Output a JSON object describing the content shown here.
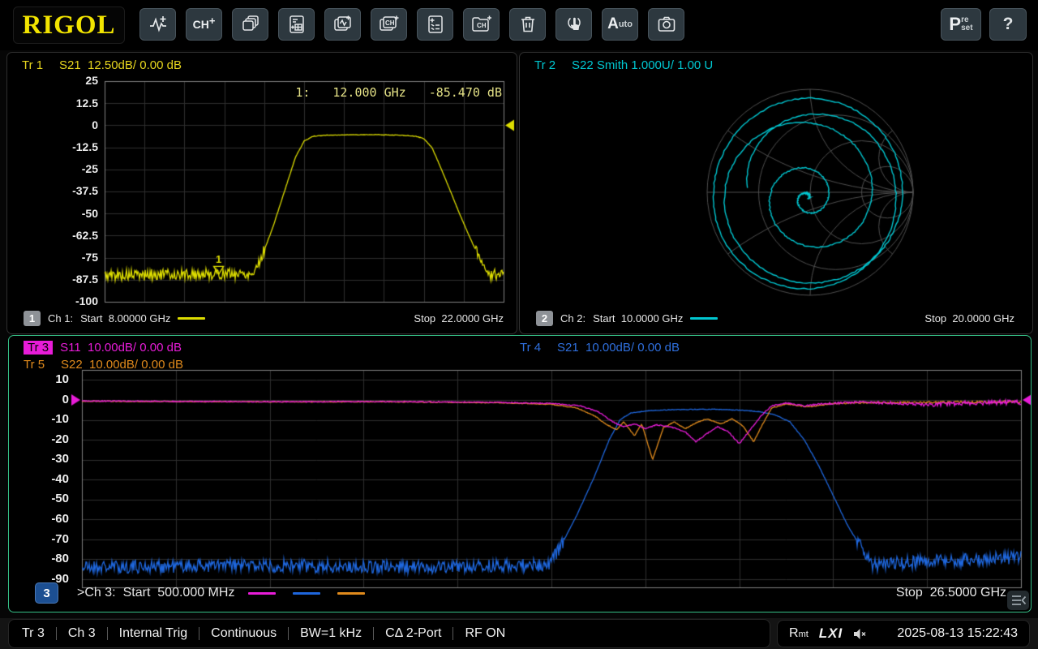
{
  "toolbar": {
    "logo": "RIGOL",
    "add_channel": {
      "text": "CH",
      "plus": "+"
    },
    "auto": {
      "text": "A",
      "suffix": "uto"
    },
    "preset": {
      "big": "P",
      "top": "re",
      "bottom": "set"
    },
    "help": "?",
    "icon_names": [
      "add-trace",
      "add-channel",
      "window-layout",
      "measurement-setup",
      "add-trace-window",
      "add-channel-window",
      "trace-manager",
      "channel-manager",
      "delete",
      "touch",
      "auto-scale",
      "screenshot"
    ]
  },
  "panels": {
    "ch1": {
      "header": {
        "tr": "Tr 1",
        "rest": "S21  12.50dB/ 0.00 dB"
      },
      "footer": {
        "badge": "1",
        "ch": "Ch 1:",
        "start": "Start  8.00000 GHz",
        "stop": "Stop  22.0000 GHz"
      }
    },
    "ch2": {
      "header": {
        "tr": "Tr 2",
        "rest": "S22 Smith 1.000U/ 1.00 U"
      },
      "footer": {
        "badge": "2",
        "ch": "Ch 2:",
        "start": "Start  10.0000 GHz",
        "stop": "Stop  20.0000 GHz"
      }
    },
    "ch3": {
      "header_tr3": {
        "tr": "Tr 3",
        "rest": "S11  10.00dB/ 0.00 dB",
        "selected": true
      },
      "header_tr5": {
        "tr": "Tr 5",
        "rest": "S22  10.00dB/ 0.00 dB"
      },
      "header_tr4": {
        "tr": "Tr 4",
        "rest": "S21  10.00dB/ 0.00 dB"
      },
      "footer": {
        "badge": "3",
        "ch": ">Ch 3:",
        "start": "Start  500.000 MHz",
        "stop": "Stop  26.5000 GHz"
      }
    }
  },
  "statusbar": {
    "items": [
      "Tr 3",
      "Ch 3",
      "Internal Trig",
      "Continuous",
      "BW=1 kHz",
      "CΔ 2-Port",
      "RF ON"
    ],
    "rmt": "R",
    "rmt_small": "mt",
    "lxi": "LXI",
    "datetime": "2025-08-13 15:22:43"
  },
  "colors": {
    "trace1_yellow": "#dcdc00",
    "trace2_cyan": "#00c6d0",
    "trace3_magenta": "#e81cd8",
    "trace4_blue": "#1e66dc",
    "trace5_orange": "#e08a1c",
    "grid_line": "#2e2e2e",
    "grid_border": "#808080",
    "smith_grid": "#4f4f4f"
  },
  "chart_data": [
    {
      "id": "ch1",
      "type": "line",
      "title": "Tr 1 S21 log magnitude",
      "x_start_ghz": 8.0,
      "x_stop_ghz": 22.0,
      "y_top_db": 25,
      "y_bottom_db": -100,
      "y_step_db": 12.5,
      "yticks": [
        "25",
        "12.5",
        "0",
        "-12.5",
        "-25",
        "-37.5",
        "-50",
        "-62.5",
        "-75",
        "-87.5",
        "-100"
      ],
      "ref_level_db": 0,
      "ref_sides": [
        {
          "side": "right",
          "color": "#dcdc00"
        }
      ],
      "marker": {
        "label": "1",
        "label_text": "1:",
        "freq_ghz": 12.0,
        "freq_text": "12.000 GHz",
        "value_db": -85.47,
        "value_text": "-85.470 dB"
      },
      "series": [
        {
          "name": "S21",
          "color": "#dcdc00",
          "noise_threshold": -70,
          "noise_amp_low": 3.2,
          "noise_amp_high": 0.15,
          "anchors": [
            [
              8,
              -85
            ],
            [
              13.2,
              -84
            ],
            [
              13.5,
              -75
            ],
            [
              13.9,
              -58
            ],
            [
              14.3,
              -38
            ],
            [
              14.7,
              -18
            ],
            [
              15,
              -9
            ],
            [
              15.3,
              -6.3
            ],
            [
              15.7,
              -5.7
            ],
            [
              16.5,
              -5.4
            ],
            [
              17.5,
              -5.3
            ],
            [
              18.3,
              -5.6
            ],
            [
              18.9,
              -6.2
            ],
            [
              19.2,
              -7.5
            ],
            [
              19.5,
              -13
            ],
            [
              19.9,
              -28
            ],
            [
              20.4,
              -48
            ],
            [
              20.8,
              -63
            ],
            [
              21.2,
              -77
            ],
            [
              21.5,
              -85
            ],
            [
              22,
              -84
            ]
          ]
        }
      ]
    },
    {
      "id": "ch2",
      "type": "smith",
      "title": "Tr 2 S22 Smith chart",
      "scale_text": "1.000U/ 1.00 U",
      "x_start_ghz": 10.0,
      "x_stop_ghz": 20.0,
      "series": [
        {
          "name": "S22",
          "color": "#00c6d0",
          "turns": 4.5,
          "start_angle_deg": 184,
          "r_profile": [
            [
              0,
              0.61
            ],
            [
              0.08,
              0.82
            ],
            [
              0.2,
              0.95
            ],
            [
              0.35,
              0.9
            ],
            [
              0.45,
              0.8
            ],
            [
              0.55,
              0.62
            ],
            [
              0.63,
              0.44
            ],
            [
              0.7,
              0.3
            ],
            [
              0.78,
              0.2
            ],
            [
              0.85,
              0.12
            ],
            [
              0.92,
              0.06
            ],
            [
              1,
              0.02
            ]
          ]
        }
      ]
    },
    {
      "id": "ch3",
      "type": "line",
      "title": "Ch 3 overlay Tr3 S11 / Tr4 S21 / Tr5 S22",
      "x_start_ghz": 0.5,
      "x_stop_ghz": 26.5,
      "y_top_db": 10,
      "y_bottom_db": -90,
      "y_step_db": 10,
      "yticks": [
        "10",
        "0",
        "-10",
        "-20",
        "-30",
        "-40",
        "-50",
        "-60",
        "-70",
        "-80",
        "-90"
      ],
      "ref_level_db": 0,
      "ref_sides": [
        {
          "side": "left",
          "color": "#e81cd8"
        },
        {
          "side": "right",
          "color": "#e81cd8"
        }
      ],
      "series": [
        {
          "name": "S21 Tr4",
          "color": "#1e66dc",
          "noise_threshold": -70,
          "noise_amp_low": 3.4,
          "noise_amp_high": 0.15,
          "anchors": [
            [
              0.5,
              -84
            ],
            [
              5,
              -83
            ],
            [
              10,
              -84
            ],
            [
              13.4,
              -83
            ],
            [
              13.8,
              -72
            ],
            [
              14.2,
              -58
            ],
            [
              14.7,
              -38
            ],
            [
              15.1,
              -20
            ],
            [
              15.4,
              -10
            ],
            [
              15.7,
              -6.5
            ],
            [
              16.2,
              -5.4
            ],
            [
              17,
              -4.8
            ],
            [
              18,
              -4.7
            ],
            [
              18.8,
              -5.2
            ],
            [
              19.3,
              -6
            ],
            [
              19.7,
              -7.5
            ],
            [
              20.1,
              -11
            ],
            [
              20.5,
              -20
            ],
            [
              20.9,
              -33
            ],
            [
              21.3,
              -48
            ],
            [
              21.7,
              -63
            ],
            [
              22.1,
              -75
            ],
            [
              22.4,
              -83
            ],
            [
              23,
              -82
            ],
            [
              26.5,
              -79
            ]
          ]
        },
        {
          "name": "S22 Tr5",
          "color": "#e08a1c",
          "noise_threshold": -200,
          "noise_amp_low": 0,
          "noise_amp_high": 0.2,
          "fuzz": {
            "start_ghz": 20,
            "amp": 0.5
          },
          "anchors": [
            [
              0.5,
              -0.6
            ],
            [
              3,
              -0.8
            ],
            [
              6,
              -1
            ],
            [
              9,
              -0.9
            ],
            [
              12,
              -1.4
            ],
            [
              13.5,
              -2.2
            ],
            [
              14.2,
              -4
            ],
            [
              14.7,
              -8
            ],
            [
              15,
              -12
            ],
            [
              15.3,
              -15
            ],
            [
              15.5,
              -11
            ],
            [
              15.8,
              -18
            ],
            [
              16,
              -12
            ],
            [
              16.3,
              -30
            ],
            [
              16.6,
              -14
            ],
            [
              16.9,
              -11
            ],
            [
              17.2,
              -14.5
            ],
            [
              17.5,
              -11.5
            ],
            [
              17.8,
              -9.5
            ],
            [
              18.2,
              -12
            ],
            [
              18.5,
              -9.5
            ],
            [
              18.8,
              -13
            ],
            [
              19.1,
              -21
            ],
            [
              19.35,
              -12
            ],
            [
              19.6,
              -4
            ],
            [
              20,
              -2
            ],
            [
              20.6,
              -3.5
            ],
            [
              21.2,
              -2
            ],
            [
              22,
              -1.5
            ],
            [
              24,
              -1.2
            ],
            [
              26.5,
              -0.9
            ]
          ]
        },
        {
          "name": "S11 Tr3",
          "color": "#e81cd8",
          "noise_threshold": -200,
          "noise_amp_low": 0,
          "noise_amp_high": 0.25,
          "fuzz": {
            "start_ghz": 19.8,
            "amp": 1.1
          },
          "anchors": [
            [
              0.5,
              -0.5
            ],
            [
              3,
              -0.7
            ],
            [
              6,
              -0.9
            ],
            [
              9,
              -0.8
            ],
            [
              12,
              -1.2
            ],
            [
              13.5,
              -1.8
            ],
            [
              14.3,
              -3
            ],
            [
              14.8,
              -6
            ],
            [
              15.2,
              -11
            ],
            [
              15.5,
              -13.5
            ],
            [
              15.8,
              -12
            ],
            [
              16.1,
              -14.5
            ],
            [
              16.4,
              -12.5
            ],
            [
              16.8,
              -13.5
            ],
            [
              17.2,
              -16
            ],
            [
              17.5,
              -21
            ],
            [
              17.8,
              -17
            ],
            [
              18.1,
              -13.5
            ],
            [
              18.4,
              -16
            ],
            [
              18.7,
              -22
            ],
            [
              19,
              -15
            ],
            [
              19.3,
              -8
            ],
            [
              19.6,
              -3
            ],
            [
              20,
              -1.5
            ],
            [
              20.5,
              -3
            ],
            [
              21,
              -2
            ],
            [
              21.8,
              -1.2
            ],
            [
              23,
              -1.5
            ],
            [
              24,
              -2.5
            ],
            [
              25,
              -1.5
            ],
            [
              26.5,
              -1
            ]
          ]
        }
      ]
    }
  ]
}
